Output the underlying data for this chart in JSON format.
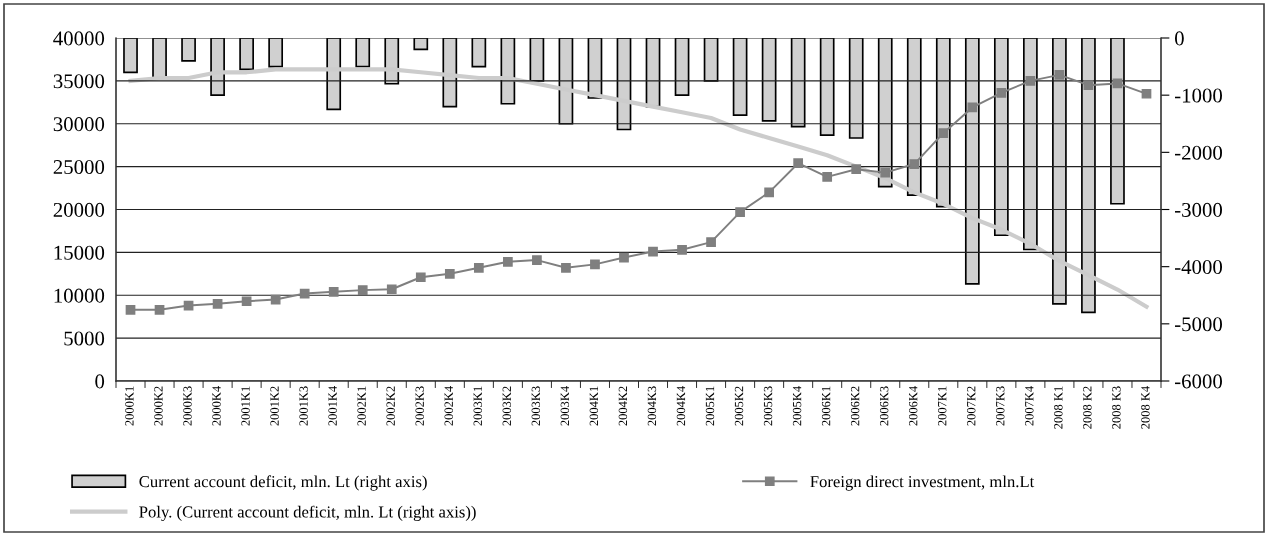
{
  "chart_data": {
    "type": "bar",
    "categories": [
      "2000K1",
      "2000K2",
      "2000K3",
      "2000K4",
      "2001K1",
      "2001K2",
      "2001K3",
      "2001K4",
      "2002K1",
      "2002K2",
      "2002K3",
      "2002K4",
      "2003K1",
      "2003K2",
      "2003K3",
      "2003K4",
      "2004K1",
      "2004K2",
      "2004K3",
      "2004K4",
      "2005K1",
      "2005K2",
      "2005K3",
      "2005K4",
      "2006K1",
      "2006K2",
      "2006K3",
      "2006K4",
      "2007K1",
      "2007K2",
      "2007K3",
      "2007K4",
      "2008 K1",
      "2008 K2",
      "2008 K3",
      "2008 K4"
    ],
    "series": [
      {
        "name": "Current account deficit, mln. Lt (right axis)",
        "axis": "y2",
        "color": "#d0d0d0",
        "values": [
          -600,
          -700,
          -400,
          -1000,
          -550,
          -500,
          null,
          -1250,
          -500,
          -800,
          -200,
          -1200,
          -500,
          -1150,
          -750,
          -1500,
          -1050,
          -1600,
          -1200,
          -1000,
          -750,
          -1350,
          -1450,
          -1550,
          -1700,
          -1750,
          -2600,
          -2750,
          -2950,
          -4300,
          -3450,
          -3700,
          -4650,
          -4800,
          -2900,
          null
        ]
      },
      {
        "name": "Foreign direct investment, mln.Lt",
        "type": "line",
        "axis": "y",
        "color": "#7f7f7f",
        "marker": "square",
        "line_style": "solid",
        "values": [
          8300,
          8300,
          8800,
          9000,
          9300,
          9500,
          10200,
          10400,
          10600,
          10700,
          12100,
          12500,
          13200,
          13900,
          14100,
          13200,
          13600,
          14400,
          15100,
          15300,
          16200,
          19700,
          22000,
          25400,
          23800,
          24700,
          24300,
          25300,
          28900,
          31900,
          33600,
          35000,
          35700,
          34500,
          34700,
          33500
        ]
      },
      {
        "name": "Poly. (Current account deficit, mln. Lt (right axis))",
        "type": "line",
        "axis": "y2",
        "color": "#cccccc",
        "marker": "none",
        "line_style": "solid",
        "values": [
          -750,
          -700,
          -700,
          -600,
          -600,
          -550,
          -550,
          -550,
          -550,
          -550,
          -600,
          -650,
          -700,
          -700,
          -800,
          -900,
          -1000,
          -1100,
          -1200,
          -1300,
          -1400,
          -1600,
          -1750,
          -1900,
          -2050,
          -2250,
          -2450,
          -2700,
          -2900,
          -3150,
          -3350,
          -3600,
          -3900,
          -4150,
          -4400,
          -4700
        ]
      }
    ],
    "ylim": [
      0,
      40000
    ],
    "yticks": [
      0,
      5000,
      10000,
      15000,
      20000,
      25000,
      30000,
      35000,
      40000
    ],
    "y2lim": [
      -6000,
      0
    ],
    "y2ticks": [
      -6000,
      -5000,
      -4000,
      -3000,
      -2000,
      -1000,
      0
    ],
    "grid": "y",
    "legend": "bottom"
  }
}
